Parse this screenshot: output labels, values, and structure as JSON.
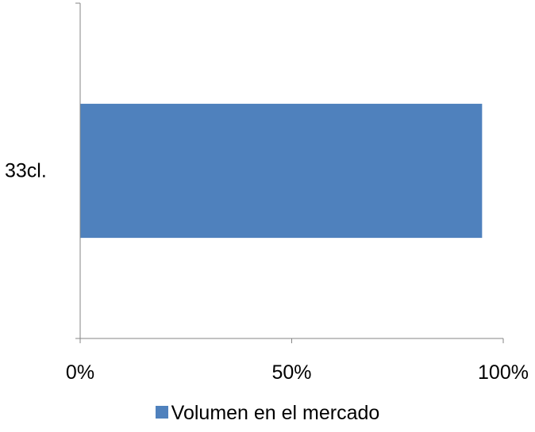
{
  "chart_data": {
    "type": "bar",
    "orientation": "horizontal",
    "categories": [
      "33cl."
    ],
    "series": [
      {
        "name": "Volumen en el mercado",
        "values": [
          95
        ],
        "color": "#4f81bd"
      }
    ],
    "xlim": [
      0,
      100
    ],
    "x_ticks": [
      0,
      50,
      100
    ],
    "x_tick_labels": [
      "0%",
      "50%",
      "100%"
    ],
    "xlabel": "",
    "ylabel": "",
    "grid": false,
    "legend": "bottom"
  }
}
